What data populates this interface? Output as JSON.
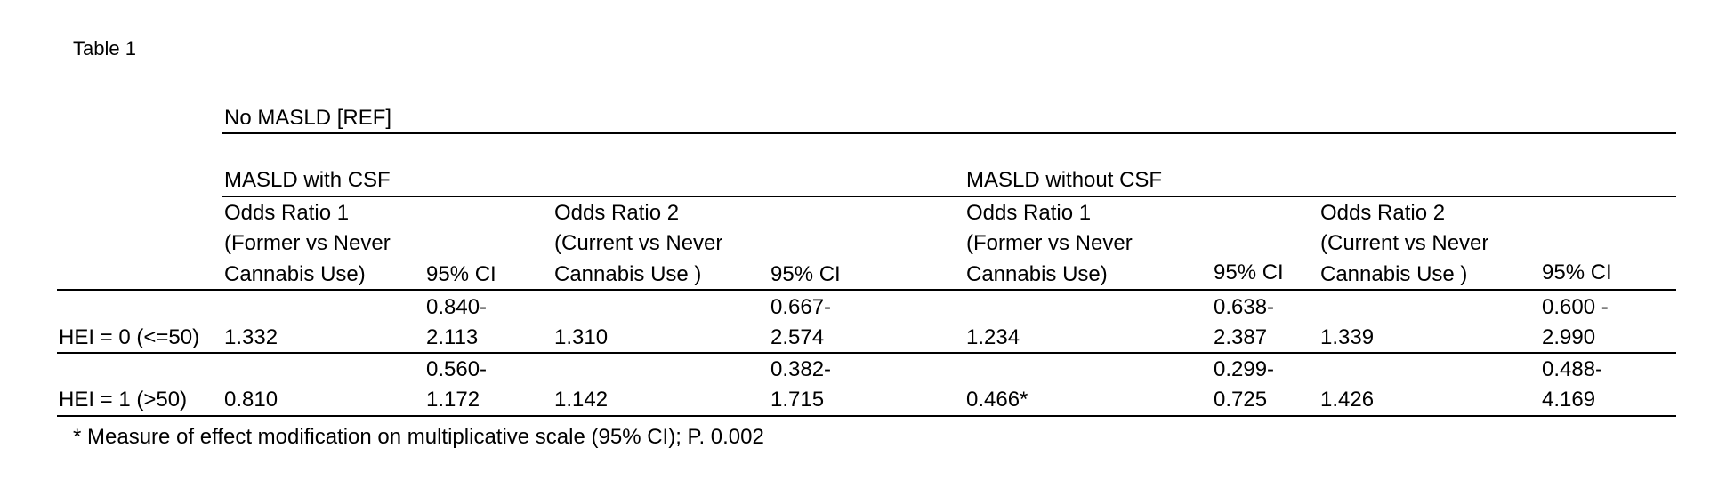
{
  "caption": "Table 1",
  "reference_label": "No MASLD [REF]",
  "groups": {
    "with_csf": "MASLD with CSF",
    "without_csf": "MASLD without CSF"
  },
  "columns": {
    "or1": [
      "Odds Ratio 1",
      "(Former vs Never",
      "Cannabis Use)"
    ],
    "or2": [
      "Odds Ratio 2",
      "(Current vs Never",
      "Cannabis Use )"
    ],
    "ci": "95% CI"
  },
  "rows": [
    {
      "label": "HEI = 0 (<=50)",
      "with_csf": {
        "or1": "1.332",
        "ci1": [
          "0.840-",
          "2.113"
        ],
        "or2": "1.310",
        "ci2": [
          "0.667-",
          "2.574"
        ]
      },
      "without_csf": {
        "or1": "1.234",
        "ci1": [
          "0.638-",
          "2.387"
        ],
        "or2": "1.339",
        "ci2": [
          "0.600 -",
          "2.990"
        ]
      }
    },
    {
      "label": "HEI = 1 (>50)",
      "with_csf": {
        "or1": "0.810",
        "ci1": [
          "0.560-",
          "1.172"
        ],
        "or2": "1.142",
        "ci2": [
          "0.382-",
          "1.715"
        ]
      },
      "without_csf": {
        "or1": "0.466*",
        "ci1": [
          "0.299-",
          "0.725"
        ],
        "or2": "1.426",
        "ci2": [
          "0.488-",
          "4.169"
        ]
      }
    }
  ],
  "footnote": "* Measure of effect modification on multiplicative scale (95% CI); P. 0.002"
}
